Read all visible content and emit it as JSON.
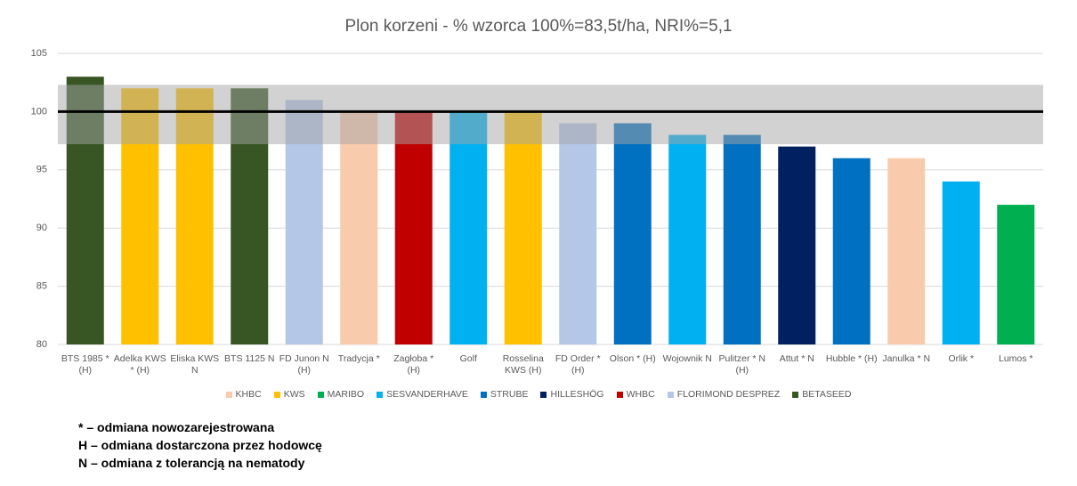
{
  "chart_data": {
    "type": "bar",
    "title": "Plon korzeni - % wzorca 100%=83,5t/ha, NRI%=5,1",
    "categories": [
      "BTS 1985 * (H)",
      "Adelka KWS * (H)",
      "Eliska KWS N",
      "BTS 1125 N",
      "FD Junon N (H)",
      "Tradycja *",
      "Zagłoba * (H)",
      "Golf",
      "Rosselina KWS (H)",
      "FD Order * (H)",
      "Olson * (H)",
      "Wojownik N",
      "Pulitzer * N (H)",
      "Attut * N",
      "Hubble * (H)",
      "Janulka * N",
      "Orlik *",
      "Lumos *"
    ],
    "series": [
      {
        "name": "KHBC",
        "color": "#f8cbad",
        "values": [
          null,
          null,
          null,
          null,
          null,
          100,
          null,
          null,
          null,
          null,
          null,
          null,
          null,
          null,
          null,
          96,
          null,
          null
        ]
      },
      {
        "name": "KWS",
        "color": "#ffc000",
        "values": [
          null,
          102,
          102,
          null,
          null,
          null,
          null,
          null,
          100,
          null,
          null,
          null,
          null,
          null,
          null,
          null,
          null,
          null
        ]
      },
      {
        "name": "MARIBO",
        "color": "#00b050",
        "values": [
          null,
          null,
          null,
          null,
          null,
          null,
          null,
          null,
          null,
          null,
          null,
          null,
          null,
          null,
          null,
          null,
          null,
          92
        ]
      },
      {
        "name": "SESVANDERHAVE",
        "color": "#00b0f0",
        "values": [
          null,
          null,
          null,
          null,
          null,
          null,
          null,
          100,
          null,
          null,
          null,
          98,
          null,
          null,
          null,
          null,
          94,
          null
        ]
      },
      {
        "name": "STRUBE",
        "color": "#0070c0",
        "values": [
          null,
          null,
          null,
          null,
          null,
          null,
          null,
          null,
          null,
          null,
          99,
          null,
          98,
          null,
          96,
          null,
          null,
          null
        ]
      },
      {
        "name": "HILLESHÖG",
        "color": "#002060",
        "values": [
          null,
          null,
          null,
          null,
          null,
          null,
          null,
          null,
          null,
          null,
          null,
          null,
          null,
          97,
          null,
          null,
          null,
          null
        ]
      },
      {
        "name": "WHBC",
        "color": "#c00000",
        "values": [
          null,
          null,
          null,
          null,
          null,
          null,
          100,
          null,
          null,
          null,
          null,
          null,
          null,
          null,
          null,
          null,
          null,
          null
        ]
      },
      {
        "name": "FLORIMOND DESPREZ",
        "color": "#b4c7e7",
        "values": [
          null,
          null,
          null,
          null,
          101,
          null,
          null,
          null,
          null,
          99,
          null,
          null,
          null,
          null,
          null,
          null,
          null,
          null
        ]
      },
      {
        "name": "BETASEED",
        "color": "#375623",
        "values": [
          103,
          null,
          null,
          102,
          null,
          null,
          null,
          null,
          null,
          null,
          null,
          null,
          null,
          null,
          null,
          null,
          null,
          null
        ]
      }
    ],
    "ylim": [
      80,
      105
    ],
    "yticks": [
      80,
      85,
      90,
      95,
      100,
      105
    ],
    "grid": true,
    "band": [
      97.2,
      102.3
    ],
    "reference_line": 100,
    "notes": [
      "* – odmiana nowozarejestrowana",
      "H – odmiana dostarczona przez hodowcę",
      "N – odmiana z tolerancją na nematody"
    ]
  }
}
